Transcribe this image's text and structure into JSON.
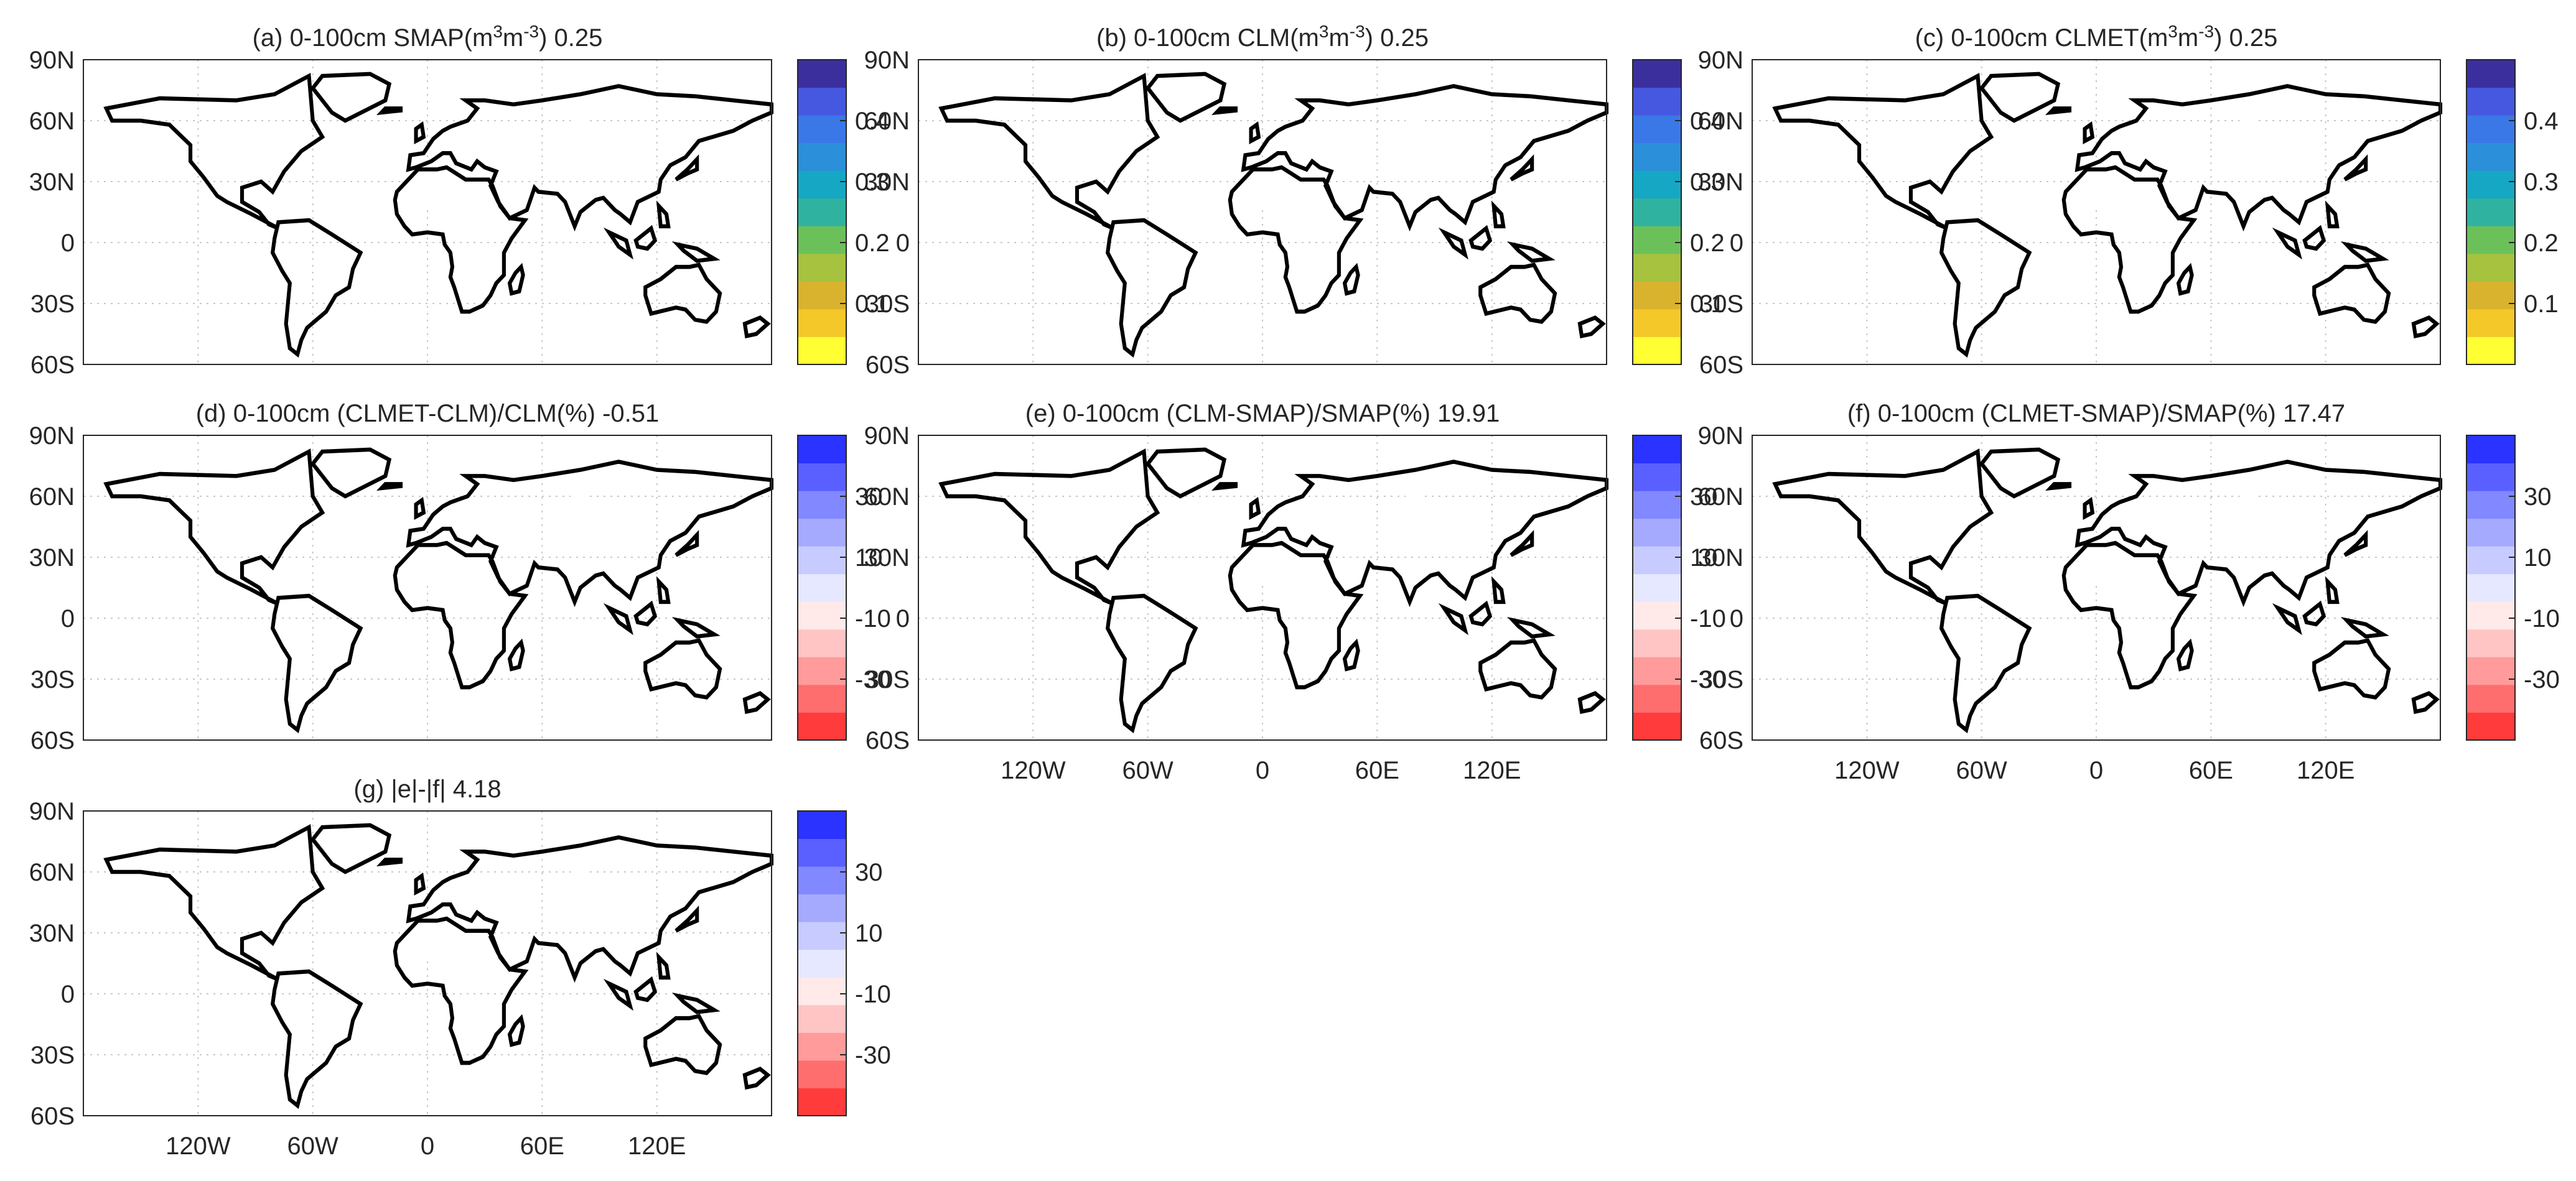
{
  "figure": {
    "panels": [
      {
        "label": "(a)",
        "title_prefix": "(a) 0-100cm  SMAP(m",
        "title_unit": "m",
        "title_exp1": "3",
        "title_mid": "m",
        "title_exp2": "-3",
        "title_suffix": ") 0.25",
        "variable": "SMAP",
        "depth": "0-100cm",
        "mean_value": "0.25",
        "scale": "moisture",
        "colorbar_ticks": [
          "0.4",
          "0.3",
          "0.2",
          "0.1"
        ],
        "show_xaxis": false
      },
      {
        "label": "(b)",
        "title_prefix": "(b) 0-100cm  CLM(m",
        "title_exp1": "3",
        "title_mid": "m",
        "title_exp2": "-3",
        "title_suffix": ") 0.25",
        "variable": "CLM",
        "depth": "0-100cm",
        "mean_value": "0.25",
        "scale": "moisture",
        "colorbar_ticks": [
          "0.4",
          "0.3",
          "0.2",
          "0.1"
        ],
        "show_xaxis": false
      },
      {
        "label": "(c)",
        "title_prefix": "(c) 0-100cm  CLMET(m",
        "title_exp1": "3",
        "title_mid": "m",
        "title_exp2": "-3",
        "title_suffix": ") 0.25",
        "variable": "CLMET",
        "depth": "0-100cm",
        "mean_value": "0.25",
        "scale": "moisture",
        "colorbar_ticks": [
          "0.4",
          "0.3",
          "0.2",
          "0.1"
        ],
        "show_xaxis": false
      },
      {
        "label": "(d)",
        "title": "(d) 0-100cm  (CLMET-CLM)/CLM(%) -0.51",
        "mean_value": "-0.51",
        "scale": "diff",
        "colorbar_ticks": [
          "30",
          "10",
          "-10",
          "-30"
        ],
        "show_xaxis": false
      },
      {
        "label": "(e)",
        "title": "(e) 0-100cm  (CLM-SMAP)/SMAP(%) 19.91",
        "mean_value": "19.91",
        "scale": "diff",
        "colorbar_ticks": [
          "30",
          "10",
          "-10",
          "-30"
        ],
        "show_xaxis": true
      },
      {
        "label": "(f)",
        "title": "(f) 0-100cm  (CLMET-SMAP)/SMAP(%) 17.47",
        "mean_value": "17.47",
        "scale": "diff",
        "colorbar_ticks": [
          "30",
          "10",
          "-10",
          "-30"
        ],
        "show_xaxis": true
      },
      {
        "label": "(g)",
        "title": "(g) |e|-|f| 4.18",
        "mean_value": "4.18",
        "scale": "diff",
        "colorbar_ticks": [
          "30",
          "10",
          "-10",
          "-30"
        ],
        "show_xaxis": true
      }
    ],
    "lat_ticks": [
      {
        "label": "90N",
        "lat": 90
      },
      {
        "label": "60N",
        "lat": 60
      },
      {
        "label": "30N",
        "lat": 30
      },
      {
        "label": "0",
        "lat": 0
      },
      {
        "label": "30S",
        "lat": -30
      },
      {
        "label": "60S",
        "lat": -60
      }
    ],
    "lon_ticks": [
      {
        "label": "120W",
        "lon": -120
      },
      {
        "label": "60W",
        "lon": -60
      },
      {
        "label": "0",
        "lon": 0
      },
      {
        "label": "60E",
        "lon": 60
      },
      {
        "label": "120E",
        "lon": 120
      }
    ],
    "lon_range": [
      -180,
      180
    ],
    "lat_range": [
      -60,
      90
    ]
  },
  "colors": {
    "moisture_levels": [
      "#ffff33",
      "#f5c829",
      "#d9b32e",
      "#a6c23f",
      "#6cc05a",
      "#2fb3a0",
      "#16a7c4",
      "#2b8fd9",
      "#3a78e8",
      "#4658e0",
      "#3b2f9e"
    ],
    "diff_levels": [
      "#ff3b3b",
      "#ff6e6e",
      "#ff9b9b",
      "#ffc4c4",
      "#ffe9e9",
      "#e6e8ff",
      "#c8cbff",
      "#a6aaff",
      "#8288ff",
      "#5a60ff",
      "#2a33ff"
    ],
    "coastline": "#000000",
    "grid": "#c8c8c8"
  }
}
